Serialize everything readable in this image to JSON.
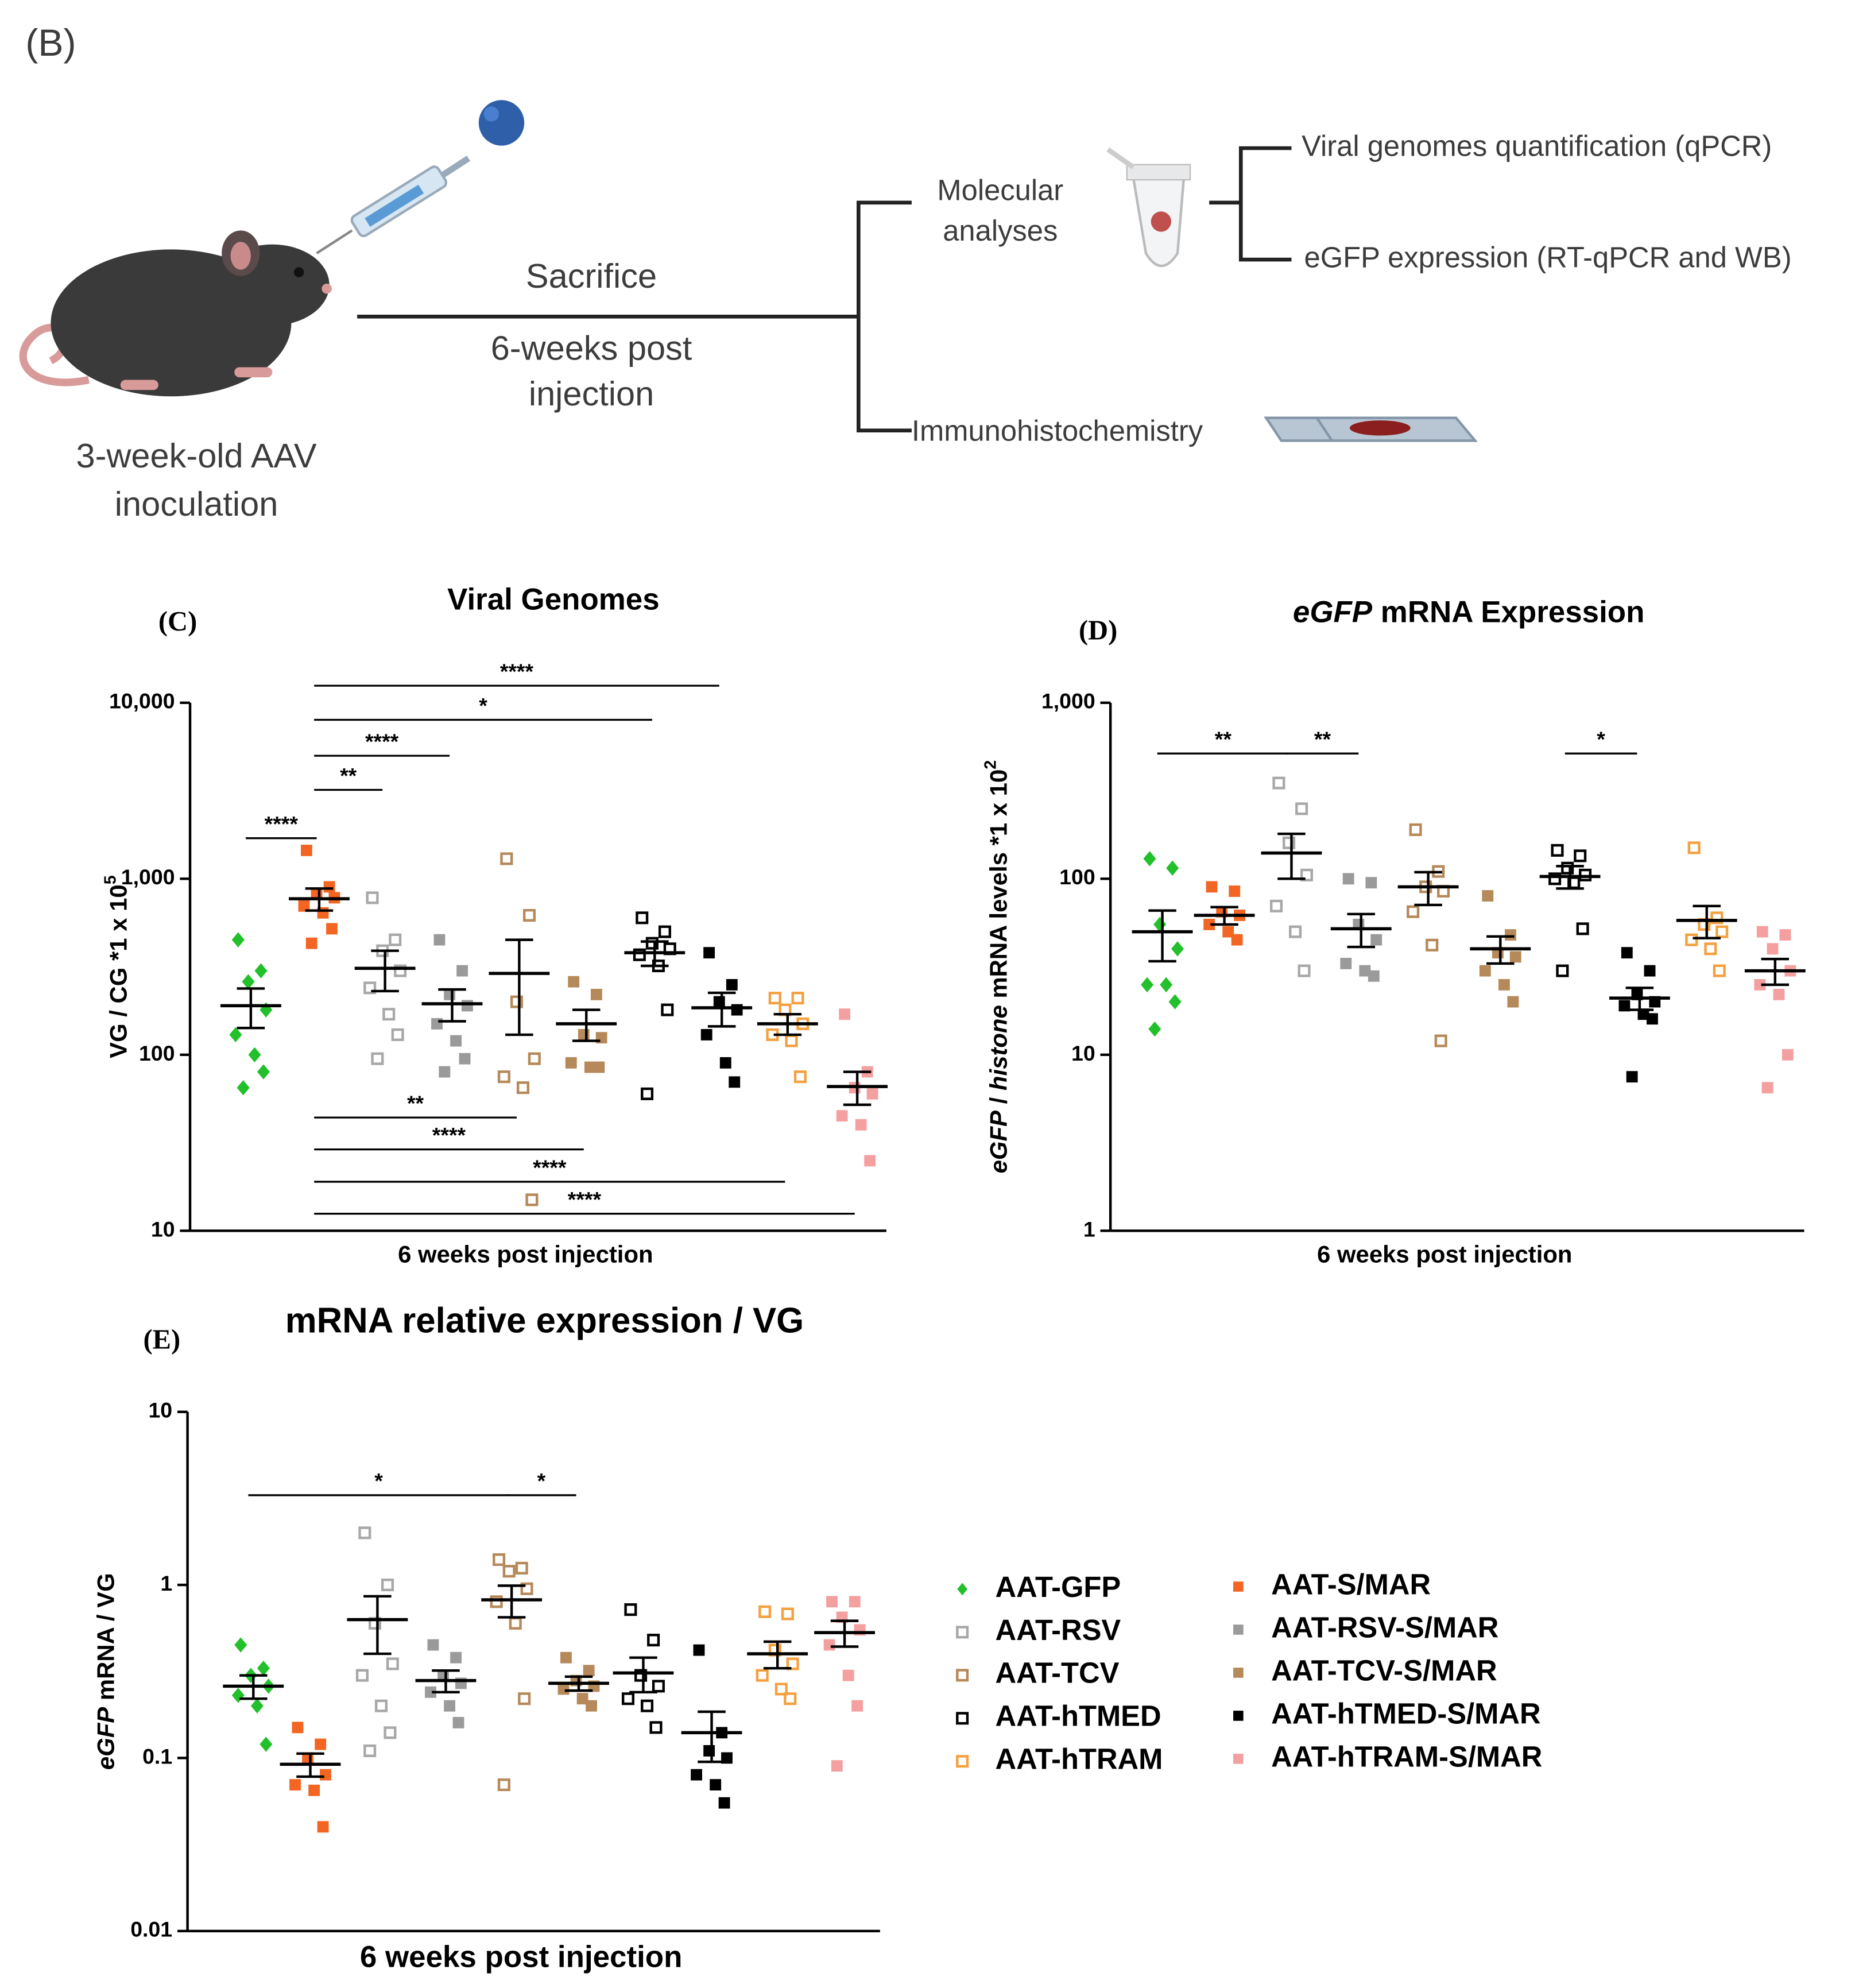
{
  "diagram": {
    "panel_label": "(B)",
    "mouse_label": [
      "3-week-old  AAV",
      "inoculation"
    ],
    "timeline_top": "Sacrifice",
    "timeline_bottom": [
      "6-weeks post",
      "injection"
    ],
    "branches": [
      [
        "Molecular",
        "analyses"
      ],
      "Immunohistochemistry"
    ],
    "outputs": [
      "Viral genomes quantification (qPCR)",
      "eGFP expression (RT-qPCR and WB)"
    ]
  },
  "chart_data": [
    {
      "type": "dot",
      "panel_label": "(C)",
      "title": [
        {
          "text": "Viral Genomes"
        }
      ],
      "ylabel": [
        {
          "text": "VG / CG *1 x 10"
        },
        {
          "text": "5",
          "sup": true
        }
      ],
      "xlabel": "6 weeks post injection",
      "log": true,
      "ylim": [
        10,
        10000
      ],
      "yticks": [
        10,
        100,
        {
          "value": 1000,
          "label": "1,000"
        },
        {
          "value": 10000,
          "label": "10,000"
        }
      ],
      "series": [
        {
          "name": "AAT-GFP",
          "color": "#22c02a",
          "marker": "diamond",
          "filled": true,
          "values": [
            450,
            300,
            260,
            180,
            130,
            100,
            80,
            65
          ],
          "mean": 190,
          "sem": 48
        },
        {
          "name": "AAT-S/MAR",
          "color": "#f26522",
          "marker": "square",
          "filled": true,
          "values": [
            1450,
            900,
            830,
            780,
            700,
            640,
            520,
            430
          ],
          "mean": 770,
          "sem": 110
        },
        {
          "name": "AAT-RSV",
          "color": "#a8a8a8",
          "marker": "square",
          "filled": false,
          "values": [
            780,
            450,
            390,
            300,
            240,
            170,
            130,
            95
          ],
          "mean": 310,
          "sem": 80
        },
        {
          "name": "AAT-RSV-S/MAR",
          "color": "#9a9a9a",
          "marker": "square",
          "filled": true,
          "values": [
            450,
            300,
            220,
            190,
            150,
            120,
            95,
            80
          ],
          "mean": 195,
          "sem": 40
        },
        {
          "name": "AAT-TCV",
          "color": "#b5895a",
          "marker": "square",
          "filled": false,
          "values": [
            1300,
            620,
            200,
            95,
            75,
            65,
            15
          ],
          "mean": 290,
          "sem": 160
        },
        {
          "name": "AAT-TCV-S/MAR",
          "color": "#b5895a",
          "marker": "square",
          "filled": true,
          "values": [
            260,
            220,
            130,
            125,
            90,
            85,
            85
          ],
          "mean": 150,
          "sem": 30
        },
        {
          "name": "AAT-hTMED",
          "color": "#000000",
          "marker": "square",
          "filled": false,
          "values": [
            600,
            500,
            430,
            400,
            370,
            320,
            180,
            60
          ],
          "mean": 380,
          "sem": 60
        },
        {
          "name": "AAT-hTMED-S/MAR",
          "color": "#000000",
          "marker": "square",
          "filled": true,
          "values": [
            380,
            250,
            200,
            180,
            130,
            90,
            70
          ],
          "mean": 185,
          "sem": 40
        },
        {
          "name": "AAT-hTRAM",
          "color": "#f4a040",
          "marker": "square",
          "filled": false,
          "values": [
            210,
            210,
            180,
            150,
            130,
            120,
            75
          ],
          "mean": 150,
          "sem": 20
        },
        {
          "name": "AAT-hTRAM-S/MAR",
          "color": "#f4a0a0",
          "marker": "square",
          "filled": true,
          "values": [
            170,
            80,
            65,
            60,
            45,
            40,
            25
          ],
          "mean": 66,
          "sem": 14
        }
      ],
      "significance": [
        {
          "from": "AAT-GFP",
          "to": "AAT-S/MAR",
          "y": 1700,
          "label": "****"
        },
        {
          "from": "AAT-S/MAR",
          "to": "AAT-RSV",
          "y": 3200,
          "label": "**"
        },
        {
          "from": "AAT-S/MAR",
          "to": "AAT-RSV-S/MAR",
          "y": 5000,
          "label": "****"
        },
        {
          "from": "AAT-S/MAR",
          "to": "AAT-hTMED",
          "y": 8000,
          "label": "*"
        },
        {
          "from": "AAT-S/MAR",
          "to": "AAT-hTMED-S/MAR",
          "y": 12500,
          "label": "****"
        },
        {
          "from": "AAT-S/MAR",
          "to": "AAT-TCV",
          "y": 44,
          "label": "**"
        },
        {
          "from": "AAT-S/MAR",
          "to": "AAT-TCV-S/MAR",
          "y": 29,
          "label": "****"
        },
        {
          "from": "AAT-S/MAR",
          "to": "AAT-hTRAM",
          "y": 19,
          "label": "****"
        },
        {
          "from": "AAT-S/MAR",
          "to": "AAT-hTRAM-S/MAR",
          "y": 12.5,
          "label": "****"
        }
      ]
    },
    {
      "type": "dot",
      "panel_label": "(D)",
      "title": [
        {
          "text": "eGFP",
          "italic": true
        },
        {
          "text": " mRNA Expression"
        }
      ],
      "ylabel": [
        {
          "text": "eGFP",
          "italic": true
        },
        {
          "text": " / "
        },
        {
          "text": "histone",
          "italic": true
        },
        {
          "text": " mRNA  levels *1 x 10"
        },
        {
          "text": "2",
          "sup": true
        }
      ],
      "xlabel": "6 weeks post injection",
      "log": true,
      "ylim": [
        1,
        1000
      ],
      "yticks": [
        1,
        10,
        100,
        {
          "value": 1000,
          "label": "1,000"
        }
      ],
      "series": [
        {
          "name": "AAT-GFP",
          "color": "#22c02a",
          "marker": "diamond",
          "filled": true,
          "values": [
            130,
            115,
            55,
            40,
            25,
            25,
            20,
            14
          ],
          "mean": 50,
          "sem": 16
        },
        {
          "name": "AAT-S/MAR",
          "color": "#f26522",
          "marker": "square",
          "filled": true,
          "values": [
            90,
            85,
            65,
            62,
            55,
            50,
            45
          ],
          "mean": 62,
          "sem": 7
        },
        {
          "name": "AAT-RSV",
          "color": "#a8a8a8",
          "marker": "square",
          "filled": false,
          "values": [
            350,
            250,
            160,
            105,
            70,
            50,
            30
          ],
          "mean": 140,
          "sem": 40
        },
        {
          "name": "AAT-RSV-S/MAR",
          "color": "#9a9a9a",
          "marker": "square",
          "filled": true,
          "values": [
            100,
            95,
            55,
            45,
            33,
            30,
            28
          ],
          "mean": 52,
          "sem": 11
        },
        {
          "name": "AAT-TCV",
          "color": "#b5895a",
          "marker": "square",
          "filled": false,
          "values": [
            190,
            110,
            90,
            85,
            65,
            42,
            12
          ],
          "mean": 90,
          "sem": 19
        },
        {
          "name": "AAT-TCV-S/MAR",
          "color": "#b5895a",
          "marker": "square",
          "filled": true,
          "values": [
            80,
            48,
            38,
            36,
            30,
            25,
            20
          ],
          "mean": 40,
          "sem": 7
        },
        {
          "name": "AAT-hTMED",
          "color": "#000000",
          "marker": "square",
          "filled": false,
          "values": [
            145,
            135,
            115,
            105,
            100,
            95,
            52,
            30
          ],
          "mean": 103,
          "sem": 15
        },
        {
          "name": "AAT-hTMED-S/MAR",
          "color": "#000000",
          "marker": "square",
          "filled": true,
          "values": [
            38,
            30,
            22,
            20,
            19,
            17,
            16,
            7.5
          ],
          "mean": 21,
          "sem": 3
        },
        {
          "name": "AAT-hTRAM",
          "color": "#f4a040",
          "marker": "square",
          "filled": false,
          "values": [
            150,
            60,
            55,
            50,
            45,
            40,
            30
          ],
          "mean": 58,
          "sem": 12
        },
        {
          "name": "AAT-hTRAM-S/MAR",
          "color": "#f4a0a0",
          "marker": "square",
          "filled": true,
          "values": [
            50,
            48,
            40,
            30,
            25,
            22,
            10,
            6.5
          ],
          "mean": 30,
          "sem": 5
        }
      ],
      "significance": [
        {
          "from": "AAT-GFP",
          "to": "AAT-RSV",
          "y": 515,
          "label": "**"
        },
        {
          "from": "AAT-RSV",
          "to": "AAT-RSV-S/MAR",
          "y": 515,
          "label": "**"
        },
        {
          "from": "AAT-hTMED",
          "to": "AAT-hTMED-S/MAR",
          "y": 515,
          "label": "*"
        }
      ]
    },
    {
      "type": "dot",
      "panel_label": "(E)",
      "title": [
        {
          "text": "mRNA relative expression / VG"
        }
      ],
      "ylabel": [
        {
          "text": "eGFP",
          "italic": true
        },
        {
          "text": " mRNA / VG"
        }
      ],
      "xlabel": "6 weeks post injection",
      "log": true,
      "ylim": [
        0.01,
        10
      ],
      "yticks": [
        0.01,
        0.1,
        1,
        10
      ],
      "legend": "right",
      "series": [
        {
          "name": "AAT-GFP",
          "color": "#22c02a",
          "marker": "diamond",
          "filled": true,
          "values": [
            0.45,
            0.33,
            0.3,
            0.26,
            0.23,
            0.2,
            0.12
          ],
          "mean": 0.26,
          "sem": 0.04
        },
        {
          "name": "AAT-S/MAR",
          "color": "#f26522",
          "marker": "square",
          "filled": true,
          "values": [
            0.15,
            0.12,
            0.1,
            0.08,
            0.07,
            0.065,
            0.04
          ],
          "mean": 0.092,
          "sem": 0.014
        },
        {
          "name": "AAT-RSV",
          "color": "#a8a8a8",
          "marker": "square",
          "filled": false,
          "values": [
            2.0,
            1.0,
            0.6,
            0.35,
            0.3,
            0.2,
            0.14,
            0.11
          ],
          "mean": 0.63,
          "sem": 0.23
        },
        {
          "name": "AAT-RSV-S/MAR",
          "color": "#9a9a9a",
          "marker": "square",
          "filled": true,
          "values": [
            0.45,
            0.38,
            0.3,
            0.27,
            0.24,
            0.2,
            0.16
          ],
          "mean": 0.28,
          "sem": 0.04
        },
        {
          "name": "AAT-TCV",
          "color": "#b5895a",
          "marker": "square",
          "filled": false,
          "values": [
            1.4,
            1.25,
            1.2,
            0.95,
            0.8,
            0.6,
            0.22,
            0.07
          ],
          "mean": 0.82,
          "sem": 0.17
        },
        {
          "name": "AAT-TCV-S/MAR",
          "color": "#b5895a",
          "marker": "square",
          "filled": true,
          "values": [
            0.38,
            0.32,
            0.28,
            0.26,
            0.25,
            0.22,
            0.2
          ],
          "mean": 0.27,
          "sem": 0.025
        },
        {
          "name": "AAT-hTMED",
          "color": "#000000",
          "marker": "square",
          "filled": false,
          "values": [
            0.72,
            0.48,
            0.3,
            0.26,
            0.22,
            0.2,
            0.15
          ],
          "mean": 0.31,
          "sem": 0.07
        },
        {
          "name": "AAT-hTMED-S/MAR",
          "color": "#000000",
          "marker": "square",
          "filled": true,
          "values": [
            0.42,
            0.14,
            0.11,
            0.1,
            0.08,
            0.07,
            0.055
          ],
          "mean": 0.14,
          "sem": 0.045
        },
        {
          "name": "AAT-hTRAM",
          "color": "#f4a040",
          "marker": "square",
          "filled": false,
          "values": [
            0.7,
            0.68,
            0.42,
            0.35,
            0.3,
            0.25,
            0.22
          ],
          "mean": 0.4,
          "sem": 0.07
        },
        {
          "name": "AAT-hTRAM-S/MAR",
          "color": "#f4a0a0",
          "marker": "square",
          "filled": true,
          "values": [
            0.8,
            0.8,
            0.65,
            0.55,
            0.45,
            0.3,
            0.2,
            0.09
          ],
          "mean": 0.53,
          "sem": 0.09
        }
      ],
      "significance": [
        {
          "from": "AAT-GFP",
          "to": "AAT-TCV",
          "y": 3.3,
          "label": "*"
        },
        {
          "from": "AAT-TCV",
          "to": "AAT-TCV-S/MAR",
          "y": 3.3,
          "label": "*"
        }
      ]
    }
  ]
}
